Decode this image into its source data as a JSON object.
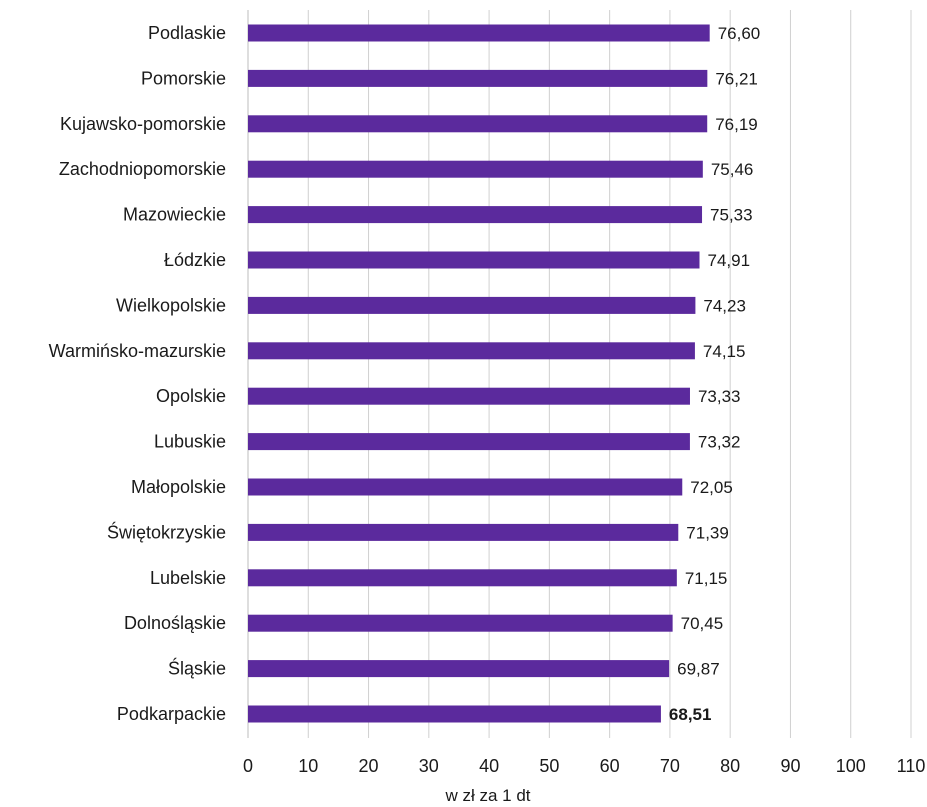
{
  "chart_data": {
    "type": "bar",
    "orientation": "horizontal",
    "categories": [
      "Podlaskie",
      "Pomorskie",
      "Kujawsko-pomorskie",
      "Zachodniopomorskie",
      "Mazowieckie",
      "Łódzkie",
      "Wielkopolskie",
      "Warmińsko-mazurskie",
      "Opolskie",
      "Lubuskie",
      "Małopolskie",
      "Świętokrzyskie",
      "Lubelskie",
      "Dolnośląskie",
      "Śląskie",
      "Podkarpackie"
    ],
    "values": [
      76.6,
      76.21,
      76.19,
      75.46,
      75.33,
      74.91,
      74.23,
      74.15,
      73.33,
      73.32,
      72.05,
      71.39,
      71.15,
      70.45,
      69.87,
      68.51
    ],
    "value_labels": [
      "76,60",
      "76,21",
      "76,19",
      "75,46",
      "75,33",
      "74,91",
      "74,23",
      "74,15",
      "73,33",
      "73,32",
      "72,05",
      "71,39",
      "71,15",
      "70,45",
      "69,87",
      "68,51"
    ],
    "highlighted_category": "Podkarpackie",
    "xlabel": "w zł za 1 dt",
    "xlim": [
      0,
      110
    ],
    "xticks": [
      "0",
      "10",
      "20",
      "30",
      "40",
      "50",
      "60",
      "70",
      "80",
      "90",
      "100",
      "110"
    ],
    "grid": "vertical",
    "legend": "none",
    "bar_color": "#5b2a9d",
    "grid_color": "#d0d0d0"
  }
}
